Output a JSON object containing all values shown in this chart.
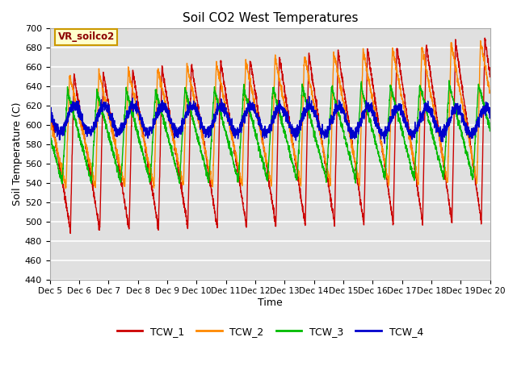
{
  "title": "Soil CO2 West Temperatures",
  "xlabel": "Time",
  "ylabel": "Soil Temperature (C)",
  "annotation": "VR_soilco2",
  "ylim": [
    440,
    700
  ],
  "yticks": [
    440,
    460,
    480,
    500,
    520,
    540,
    560,
    580,
    600,
    620,
    640,
    660,
    680,
    700
  ],
  "xtick_labels": [
    "Dec 5",
    "Dec 6",
    "Dec 7",
    "Dec 8",
    "Dec 9",
    "Dec 10",
    "Dec 11",
    "Dec 12",
    "Dec 13",
    "Dec 14",
    "Dec 15",
    "Dec 16",
    "Dec 17",
    "Dec 18",
    "Dec 19",
    "Dec 20"
  ],
  "line_colors": [
    "#cc0000",
    "#ff8800",
    "#00bb00",
    "#0000cc"
  ],
  "line_labels": [
    "TCW_1",
    "TCW_2",
    "TCW_3",
    "TCW_4"
  ],
  "background_color": "#e0e0e0",
  "grid_color": "#ffffff"
}
